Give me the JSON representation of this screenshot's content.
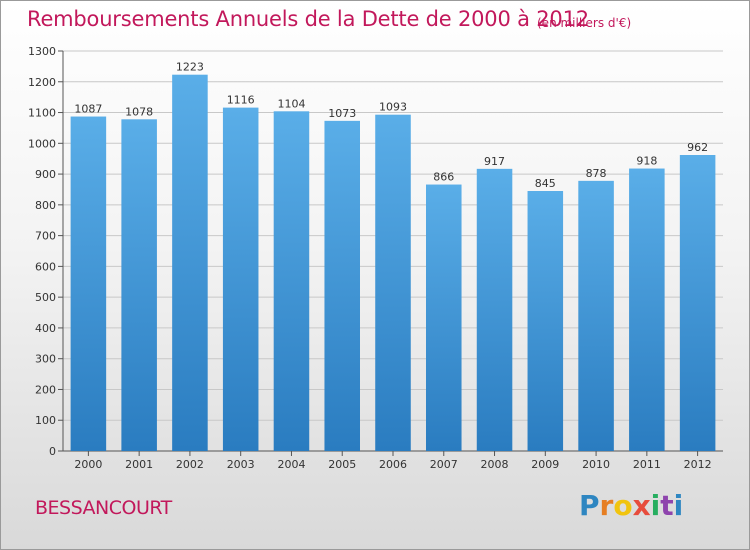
{
  "chart_data": {
    "type": "bar",
    "title": "Remboursements Annuels de la Dette de 2000 à 2012",
    "unit_note": "(en milliers d'€)",
    "categories": [
      "2000",
      "2001",
      "2002",
      "2003",
      "2004",
      "2005",
      "2006",
      "2007",
      "2008",
      "2009",
      "2010",
      "2011",
      "2012"
    ],
    "values": [
      1087,
      1078,
      1223,
      1116,
      1104,
      1073,
      1093,
      866,
      917,
      845,
      878,
      918,
      962
    ],
    "ylim": [
      0,
      1300
    ],
    "yticks": [
      0,
      100,
      200,
      300,
      400,
      500,
      600,
      700,
      800,
      900,
      1000,
      1100,
      1200,
      1300
    ],
    "grid": true,
    "bar_color_top": "#5aaee8",
    "bar_color_bottom": "#2a7cc0"
  },
  "footer": {
    "place": "BESSANCOURT",
    "logo_letters": [
      "P",
      "r",
      "o",
      "x",
      "i",
      "t",
      "i"
    ],
    "logo_colors": [
      "#2e86c1",
      "#e67e22",
      "#f1c40f",
      "#e74c3c",
      "#27ae60",
      "#8e44ad",
      "#2e86c1"
    ]
  },
  "colors": {
    "title": "#c2185b",
    "grid": "#c8c8c8"
  }
}
